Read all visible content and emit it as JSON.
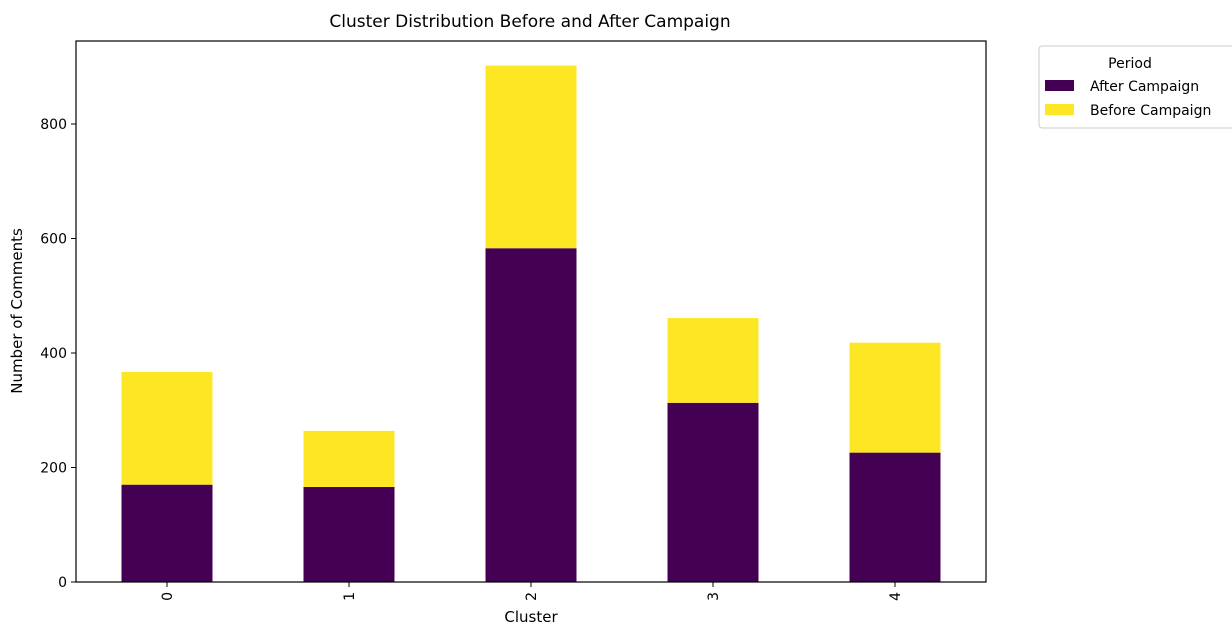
{
  "chart_data": {
    "type": "bar",
    "stacked": true,
    "title": "Cluster Distribution Before and After Campaign",
    "xlabel": "Cluster",
    "ylabel": "Number of Comments",
    "categories": [
      "0",
      "1",
      "2",
      "3",
      "4"
    ],
    "series": [
      {
        "name": "After Campaign",
        "color": "#440154",
        "values": [
          170,
          166,
          583,
          313,
          226
        ]
      },
      {
        "name": "Before Campaign",
        "color": "#fde725",
        "values": [
          197,
          98,
          319,
          148,
          192
        ]
      }
    ],
    "ylim": [
      0,
      945
    ],
    "yticks": [
      0,
      200,
      400,
      600,
      800
    ],
    "x_tick_rotation": 90,
    "legend": {
      "title": "Period",
      "placement": "outside-upper-right"
    },
    "grid": false
  }
}
